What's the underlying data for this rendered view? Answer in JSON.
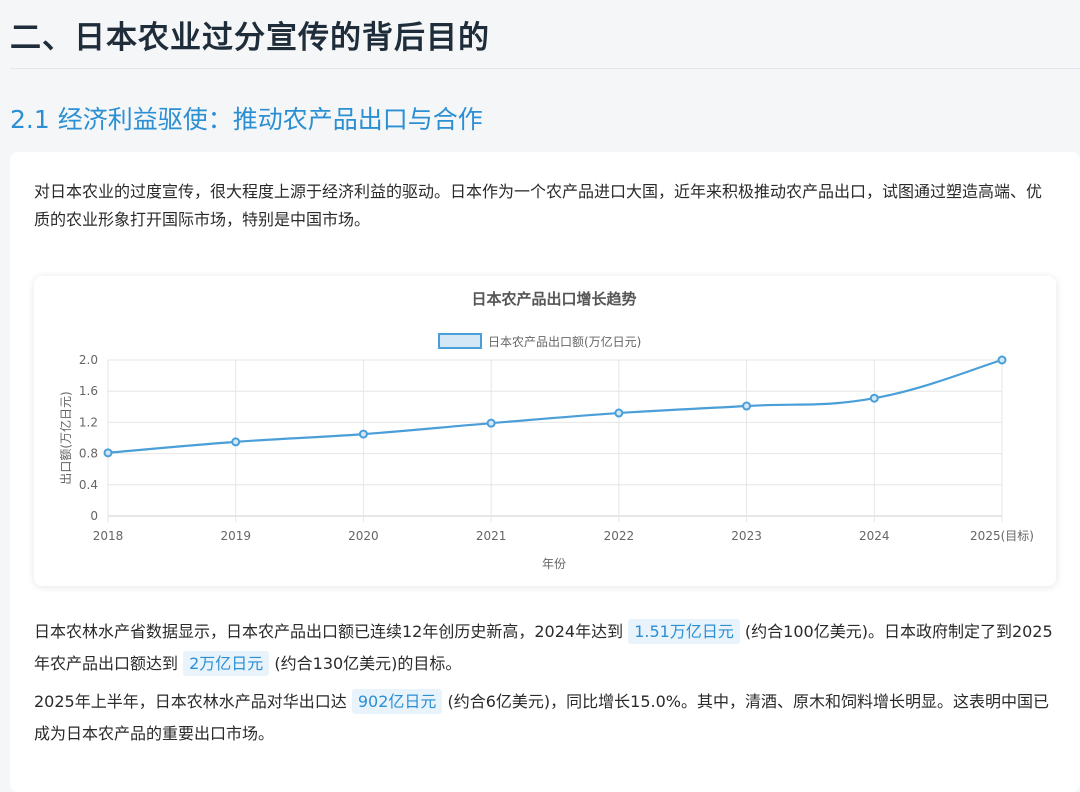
{
  "page": {
    "title": "二、日本农业过分宣传的背后目的",
    "section_title": "2.1 经济利益驱使：推动农产品出口与合作",
    "intro": "对日本农业的过度宣传，很大程度上源于经济利益的驱动。日本作为一个农产品进口大国，近年来积极推动农产品出口，试图通过塑造高端、优质的农业形象打开国际市场，特别是中国市场。",
    "para2": {
      "t1": "日本农林水产省数据显示，日本农产品出口额已连续12年创历史新高，2024年达到",
      "h1": "1.51万亿日元",
      "t2": "(约合100亿美元)。日本政府制定了到2025年农产品出口额达到",
      "h2": "2万亿日元",
      "t3": "(约合130亿美元)的目标。"
    },
    "para3": {
      "t1": "2025年上半年，日本农林水产品对华出口达",
      "h1": "902亿日元",
      "t2": "(约合6亿美元)，同比增长15.0%。其中，清酒、原木和饲料增长明显。这表明中国已成为日本农产品的重要出口市场。"
    }
  },
  "colors": {
    "accent": "#2b8fd4",
    "line": "#4a9fd8",
    "fill": "#d3e7f6"
  },
  "chart_data": {
    "type": "line",
    "title": "日本农产品出口增长趋势",
    "xlabel": "年份",
    "ylabel": "出口额(万亿日元)",
    "categories": [
      "2018",
      "2019",
      "2020",
      "2021",
      "2022",
      "2023",
      "2024",
      "2025(目标)"
    ],
    "series": [
      {
        "name": "日本农产品出口额(万亿日元)",
        "values": [
          0.81,
          0.95,
          1.05,
          1.19,
          1.32,
          1.41,
          1.51,
          2.0
        ]
      }
    ],
    "ylim": [
      0,
      2.0
    ],
    "yticks": [
      0,
      0.4,
      0.8,
      1.2,
      1.6,
      2.0
    ],
    "ytick_labels": [
      "0",
      "0.4",
      "0.8",
      "1.2",
      "1.6",
      "2.0"
    ],
    "grid": true,
    "legend": "top"
  }
}
